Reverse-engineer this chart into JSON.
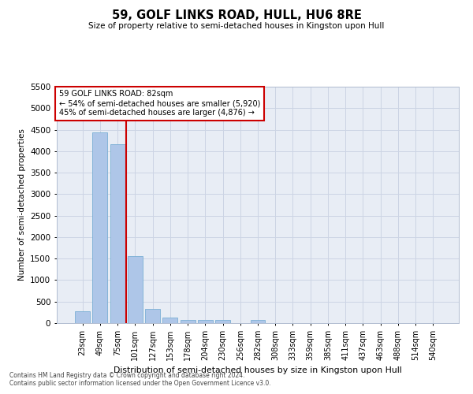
{
  "title": "59, GOLF LINKS ROAD, HULL, HU6 8RE",
  "subtitle": "Size of property relative to semi-detached houses in Kingston upon Hull",
  "xlabel": "Distribution of semi-detached houses by size in Kingston upon Hull",
  "ylabel": "Number of semi-detached properties",
  "categories": [
    "23sqm",
    "49sqm",
    "75sqm",
    "101sqm",
    "127sqm",
    "153sqm",
    "178sqm",
    "204sqm",
    "230sqm",
    "256sqm",
    "282sqm",
    "308sqm",
    "333sqm",
    "359sqm",
    "385sqm",
    "411sqm",
    "437sqm",
    "463sqm",
    "488sqm",
    "514sqm",
    "540sqm"
  ],
  "values": [
    280,
    4430,
    4160,
    1560,
    330,
    120,
    75,
    65,
    65,
    0,
    65,
    0,
    0,
    0,
    0,
    0,
    0,
    0,
    0,
    0,
    0
  ],
  "bar_color": "#aec6e8",
  "bar_edge_color": "#7aafd4",
  "property_line_x": 2.5,
  "annotation_title": "59 GOLF LINKS ROAD: 82sqm",
  "annotation_line1": "← 54% of semi-detached houses are smaller (5,920)",
  "annotation_line2": "45% of semi-detached houses are larger (4,876) →",
  "annotation_box_color": "#ffffff",
  "annotation_box_edge": "#cc0000",
  "property_line_color": "#cc0000",
  "ylim": [
    0,
    5500
  ],
  "yticks": [
    0,
    500,
    1000,
    1500,
    2000,
    2500,
    3000,
    3500,
    4000,
    4500,
    5000,
    5500
  ],
  "grid_color": "#ccd4e4",
  "background_color": "#e8edf5",
  "footnote1": "Contains HM Land Registry data © Crown copyright and database right 2024.",
  "footnote2": "Contains public sector information licensed under the Open Government Licence v3.0."
}
